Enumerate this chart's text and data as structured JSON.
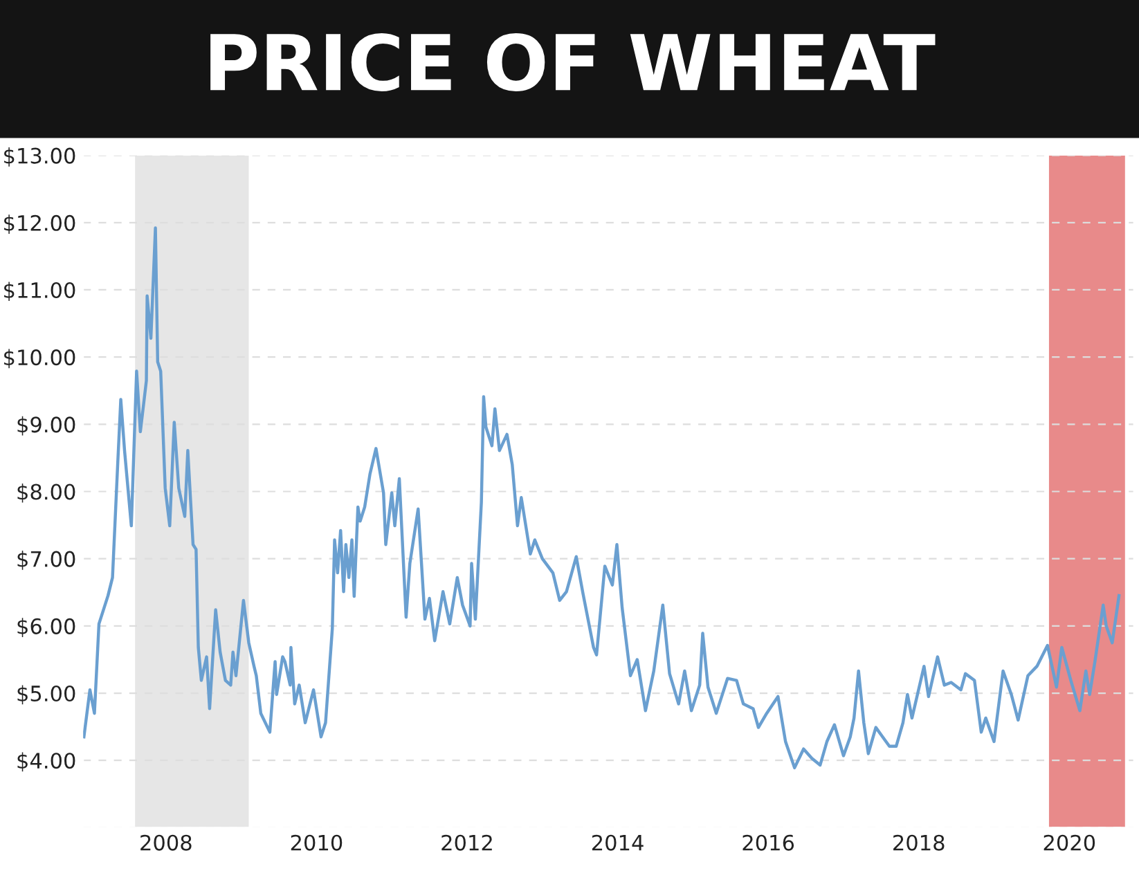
{
  "chart_data": {
    "type": "line",
    "title": "PRICE OF WHEAT",
    "series": [
      {
        "color": "#6a9fd0",
        "x": [
          2006.91,
          2006.99,
          2007.05,
          2007.11,
          2007.23,
          2007.29,
          2007.36,
          2007.4,
          2007.45,
          2007.54,
          2007.61,
          2007.66,
          2007.74,
          2007.75,
          2007.8,
          2007.86,
          2007.89,
          2007.93,
          2007.99,
          2008.05,
          2008.11,
          2008.17,
          2008.25,
          2008.29,
          2008.36,
          2008.4,
          2008.43,
          2008.47,
          2008.54,
          2008.58,
          2008.66,
          2008.72,
          2008.79,
          2008.86,
          2008.89,
          2008.93,
          2009.03,
          2009.1,
          2009.17,
          2009.2,
          2009.26,
          2009.38,
          2009.45,
          2009.47,
          2009.55,
          2009.58,
          2009.65,
          2009.66,
          2009.71,
          2009.77,
          2009.85,
          2009.96,
          2010.06,
          2010.12,
          2010.21,
          2010.24,
          2010.28,
          2010.32,
          2010.36,
          2010.39,
          2010.43,
          2010.47,
          2010.5,
          2010.55,
          2010.58,
          2010.64,
          2010.71,
          2010.79,
          2010.89,
          2010.92,
          2011.0,
          2011.04,
          2011.1,
          2011.19,
          2011.24,
          2011.35,
          2011.44,
          2011.5,
          2011.57,
          2011.68,
          2011.77,
          2011.87,
          2011.94,
          2012.04,
          2012.06,
          2012.11,
          2012.19,
          2012.22,
          2012.25,
          2012.33,
          2012.37,
          2012.43,
          2012.53,
          2012.6,
          2012.67,
          2012.72,
          2012.84,
          2012.9,
          2013.0,
          2013.14,
          2013.23,
          2013.32,
          2013.45,
          2013.54,
          2013.68,
          2013.72,
          2013.83,
          2013.93,
          2013.99,
          2014.06,
          2014.17,
          2014.26,
          2014.37,
          2014.48,
          2014.6,
          2014.69,
          2014.81,
          2014.89,
          2014.98,
          2015.09,
          2015.13,
          2015.2,
          2015.31,
          2015.46,
          2015.58,
          2015.67,
          2015.8,
          2015.87,
          2015.98,
          2016.13,
          2016.23,
          2016.35,
          2016.47,
          2016.58,
          2016.69,
          2016.78,
          2016.88,
          2017.0,
          2017.09,
          2017.14,
          2017.2,
          2017.27,
          2017.33,
          2017.43,
          2017.52,
          2017.61,
          2017.7,
          2017.79,
          2017.85,
          2017.91,
          2018.07,
          2018.13,
          2018.25,
          2018.34,
          2018.43,
          2018.56,
          2018.62,
          2018.74,
          2018.83,
          2018.89,
          2019.0,
          2019.12,
          2019.23,
          2019.32,
          2019.45,
          2019.57,
          2019.71,
          2019.83,
          2019.9,
          2020.02,
          2020.14,
          2020.22,
          2020.27,
          2020.34,
          2020.45,
          2020.49,
          2020.57,
          2020.66
        ],
        "values": [
          4.35,
          5.05,
          4.7,
          6.03,
          6.45,
          6.72,
          8.43,
          9.37,
          8.61,
          7.49,
          9.79,
          8.89,
          9.65,
          10.91,
          10.28,
          11.92,
          9.93,
          9.79,
          8.05,
          7.49,
          9.03,
          8.05,
          7.63,
          8.61,
          7.21,
          7.14,
          5.68,
          5.19,
          5.54,
          4.77,
          6.24,
          5.61,
          5.19,
          5.12,
          5.61,
          5.26,
          6.38,
          5.75,
          5.4,
          5.26,
          4.7,
          4.42,
          5.47,
          4.98,
          5.54,
          5.47,
          5.12,
          5.68,
          4.84,
          5.12,
          4.56,
          5.05,
          4.35,
          4.56,
          5.96,
          7.28,
          6.79,
          7.42,
          6.51,
          7.21,
          6.72,
          7.28,
          6.44,
          7.77,
          7.56,
          7.77,
          8.26,
          8.64,
          7.98,
          7.21,
          7.98,
          7.49,
          8.19,
          6.13,
          6.93,
          7.74,
          6.1,
          6.41,
          5.78,
          6.51,
          6.03,
          6.72,
          6.31,
          6.0,
          6.93,
          6.1,
          7.84,
          9.41,
          8.96,
          8.68,
          9.23,
          8.61,
          8.85,
          8.4,
          7.49,
          7.91,
          7.07,
          7.28,
          7.0,
          6.79,
          6.38,
          6.51,
          7.03,
          6.48,
          5.68,
          5.57,
          6.89,
          6.61,
          7.21,
          6.27,
          5.26,
          5.5,
          4.74,
          5.33,
          6.31,
          5.29,
          4.84,
          5.33,
          4.74,
          5.12,
          5.89,
          5.09,
          4.7,
          5.22,
          5.19,
          4.84,
          4.77,
          4.49,
          4.7,
          4.95,
          4.28,
          3.89,
          4.17,
          4.03,
          3.93,
          4.28,
          4.53,
          4.07,
          4.35,
          4.63,
          5.33,
          4.56,
          4.1,
          4.49,
          4.35,
          4.21,
          4.21,
          4.56,
          4.98,
          4.63,
          5.4,
          4.95,
          5.54,
          5.12,
          5.16,
          5.05,
          5.29,
          5.19,
          4.42,
          4.63,
          4.28,
          5.33,
          4.98,
          4.6,
          5.26,
          5.4,
          5.71,
          5.09,
          5.68,
          5.19,
          4.74,
          5.33,
          4.98,
          5.47,
          6.31,
          6.0,
          5.75,
          6.45
        ]
      }
    ],
    "xlim": [
      2006.9,
      2020.85
    ],
    "xticks": [
      2008,
      2010,
      2012,
      2014,
      2016,
      2018,
      2020
    ],
    "ylim": [
      3,
      13
    ],
    "yticks": [
      {
        "value": 3,
        "label": null
      },
      {
        "value": 4,
        "label": "$4.00"
      },
      {
        "value": 5,
        "label": "$5.00"
      },
      {
        "value": 6,
        "label": "$6.00"
      },
      {
        "value": 7,
        "label": "$7.00"
      },
      {
        "value": 8,
        "label": "$8.00"
      },
      {
        "value": 9,
        "label": "$9.00"
      },
      {
        "value": 10,
        "label": "$10.00"
      },
      {
        "value": 11,
        "label": "$11.00"
      },
      {
        "value": 12,
        "label": "$12.00"
      },
      {
        "value": 13,
        "label": "$13.00"
      }
    ],
    "bands": [
      {
        "axis": "x",
        "from": 2007.59,
        "to": 2009.1,
        "color": "#e6e6e6"
      },
      {
        "axis": "x",
        "from": 2019.73,
        "to": 2020.74,
        "color": "#e88a8a"
      }
    ],
    "grid": "y",
    "line_style": "solid",
    "marker": "none"
  }
}
